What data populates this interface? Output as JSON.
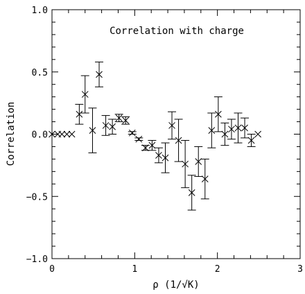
{
  "chart_data": {
    "type": "scatter",
    "title": "",
    "annotation": "Correlation with charge",
    "xlabel": "ρ (1/√K)",
    "ylabel": "Correlation",
    "xlim": [
      0,
      3
    ],
    "ylim": [
      -1.0,
      1.0
    ],
    "x_ticks": [
      0,
      1,
      2,
      3
    ],
    "x_tick_labels": [
      "0",
      "1",
      "2",
      "3"
    ],
    "y_ticks": [
      -1.0,
      -0.5,
      0.0,
      0.5,
      1.0
    ],
    "y_tick_labels": [
      "−1.0",
      "−0.5",
      "0.0",
      "0.5",
      "1.0"
    ],
    "grid": false,
    "marker": "x",
    "series": [
      {
        "points": [
          {
            "x": 0.0,
            "y": 0.0,
            "err": 0
          },
          {
            "x": 0.07,
            "y": 0.0,
            "err": 0
          },
          {
            "x": 0.12,
            "y": 0.0,
            "err": 0
          },
          {
            "x": 0.18,
            "y": 0.0,
            "err": 0
          },
          {
            "x": 0.24,
            "y": 0.0,
            "err": 0
          },
          {
            "x": 0.33,
            "y": 0.16,
            "err": 0.08
          },
          {
            "x": 0.4,
            "y": 0.32,
            "err": 0.15
          },
          {
            "x": 0.49,
            "y": 0.03,
            "err": 0.18
          },
          {
            "x": 0.57,
            "y": 0.48,
            "err": 0.1
          },
          {
            "x": 0.65,
            "y": 0.07,
            "err": 0.08
          },
          {
            "x": 0.73,
            "y": 0.06,
            "err": 0.06
          },
          {
            "x": 0.81,
            "y": 0.13,
            "err": 0.03
          },
          {
            "x": 0.89,
            "y": 0.11,
            "err": 0.03
          },
          {
            "x": 0.97,
            "y": 0.01,
            "err": 0.01
          },
          {
            "x": 1.05,
            "y": -0.04,
            "err": 0.01
          },
          {
            "x": 1.13,
            "y": -0.11,
            "err": 0.02
          },
          {
            "x": 1.21,
            "y": -0.09,
            "err": 0.04
          },
          {
            "x": 1.29,
            "y": -0.17,
            "err": 0.06
          },
          {
            "x": 1.37,
            "y": -0.19,
            "err": 0.12
          },
          {
            "x": 1.45,
            "y": 0.07,
            "err": 0.11
          },
          {
            "x": 1.53,
            "y": -0.05,
            "err": 0.17
          },
          {
            "x": 1.61,
            "y": -0.24,
            "err": 0.19
          },
          {
            "x": 1.69,
            "y": -0.47,
            "err": 0.14
          },
          {
            "x": 1.77,
            "y": -0.22,
            "err": 0.12
          },
          {
            "x": 1.85,
            "y": -0.36,
            "err": 0.16
          },
          {
            "x": 1.93,
            "y": 0.03,
            "err": 0.14
          },
          {
            "x": 2.01,
            "y": 0.16,
            "err": 0.14
          },
          {
            "x": 2.09,
            "y": 0.0,
            "err": 0.09
          },
          {
            "x": 2.17,
            "y": 0.04,
            "err": 0.08
          },
          {
            "x": 2.25,
            "y": 0.05,
            "err": 0.12
          },
          {
            "x": 2.33,
            "y": 0.05,
            "err": 0.08
          },
          {
            "x": 2.41,
            "y": -0.05,
            "err": 0.05
          },
          {
            "x": 2.49,
            "y": 0.0,
            "err": 0
          }
        ]
      }
    ]
  }
}
